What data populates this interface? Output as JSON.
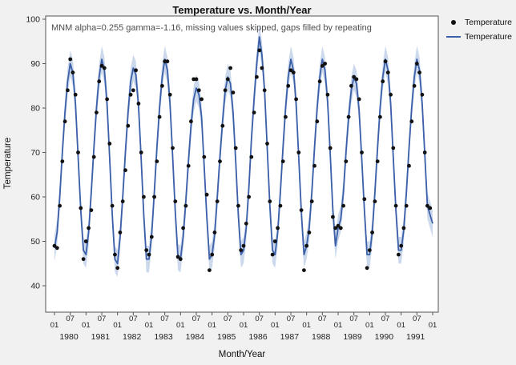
{
  "figure": {
    "title": "Temperature vs. Month/Year",
    "annotation": "MNM alpha=0.255 gamma=-1.16, missing values skipped, gaps filled by repeating",
    "xlabel": "Month/Year",
    "ylabel": "Temperature"
  },
  "legend": {
    "items": [
      {
        "label": "Temperature",
        "marker": "dot"
      },
      {
        "label": "Temperature",
        "marker": "line"
      }
    ]
  },
  "colors": {
    "line": "#3b5fa8",
    "band": "#a3b9dd",
    "point": "#111111",
    "plot_bg": "#ffffff",
    "figure_bg": "#f1f1f2",
    "axis": "#545454",
    "tick_text": "#222222"
  },
  "chart_data": {
    "type": "line",
    "title": "Temperature vs. Month/Year",
    "xlabel": "Month/Year",
    "ylabel": "Temperature",
    "ylim": [
      40,
      100
    ],
    "yticks": [
      40,
      50,
      60,
      70,
      80,
      90,
      100
    ],
    "x_start": "1980-01",
    "x_months": 145,
    "xtick_every_months": 6,
    "xtick_labels_pattern": [
      "01",
      "07"
    ],
    "years": [
      1980,
      1981,
      1982,
      1983,
      1984,
      1985,
      1986,
      1987,
      1988,
      1989,
      1990,
      1991
    ],
    "annotation": "MNM alpha=0.255 gamma=-1.16, missing values skipped, gaps filled by repeating",
    "legend_position": "right",
    "grid": false,
    "series": [
      {
        "name": "Temperature",
        "type": "scatter",
        "values": [
          49,
          48.5,
          58,
          68,
          77,
          84,
          91,
          88,
          83,
          70,
          57.5,
          46,
          50,
          53,
          57,
          69,
          79,
          86,
          89.5,
          89,
          82,
          72,
          58,
          47,
          44,
          52,
          59,
          66,
          76,
          83,
          84,
          88.5,
          81,
          70,
          60,
          48,
          47,
          51,
          60,
          68,
          78,
          85,
          90.5,
          90.5,
          83,
          71,
          59,
          46.5,
          46,
          53,
          58,
          67,
          77,
          86.5,
          86.5,
          84,
          82,
          69,
          60.5,
          43.5,
          47,
          52,
          59,
          68,
          76,
          84,
          86.5,
          89,
          83.5,
          71,
          58,
          48,
          49,
          54,
          60,
          69,
          79,
          87,
          93,
          89,
          84,
          72,
          59,
          47,
          50,
          53,
          58,
          68,
          78,
          85,
          88.5,
          88,
          82,
          70,
          57,
          43.5,
          49,
          52,
          59,
          67,
          77,
          86,
          89.5,
          90,
          83,
          71,
          55.5,
          53,
          53.5,
          53,
          58,
          68,
          78,
          85,
          87,
          86.5,
          82,
          70,
          59.5,
          44,
          48,
          52,
          59,
          68,
          78,
          86,
          90.5,
          88,
          83,
          71,
          58,
          47,
          49,
          53,
          58,
          67,
          77,
          85,
          90,
          88,
          83,
          70,
          58,
          57.5
        ]
      },
      {
        "name": "Temperature",
        "type": "line",
        "band_halfwidth": 3,
        "values": [
          48.5,
          52,
          60,
          70,
          79,
          86,
          90,
          88,
          81,
          69,
          57,
          48,
          47,
          52,
          61,
          71,
          80,
          87,
          91,
          88.5,
          81,
          69,
          56,
          46,
          45,
          51,
          60,
          70,
          79,
          86,
          89,
          87.5,
          80.5,
          68.5,
          56,
          46,
          46,
          51.5,
          61,
          71,
          80,
          87,
          91,
          88.5,
          81,
          69,
          56.5,
          46.5,
          46,
          51,
          59,
          68,
          76,
          82,
          84.5,
          83,
          78,
          67,
          55.5,
          46,
          47,
          51.5,
          60,
          69,
          77,
          84,
          87,
          85.5,
          79,
          68,
          56,
          47,
          48,
          53,
          62,
          73,
          82,
          90,
          96,
          92,
          84,
          71,
          58,
          48,
          47,
          52,
          61,
          71,
          80,
          87,
          91,
          88.5,
          81,
          69,
          56.5,
          47,
          49,
          53,
          61,
          71,
          80,
          87,
          91,
          88.5,
          81.5,
          69.5,
          57,
          49,
          53,
          55,
          61,
          70,
          78,
          84,
          87,
          85.5,
          79.5,
          68.5,
          57,
          47,
          47,
          52,
          61,
          71,
          80,
          87,
          91,
          88.5,
          81,
          69,
          57,
          48,
          48,
          52.5,
          61,
          71,
          80,
          87,
          91,
          88.5,
          81,
          69.5,
          58,
          56,
          54
        ]
      }
    ]
  }
}
